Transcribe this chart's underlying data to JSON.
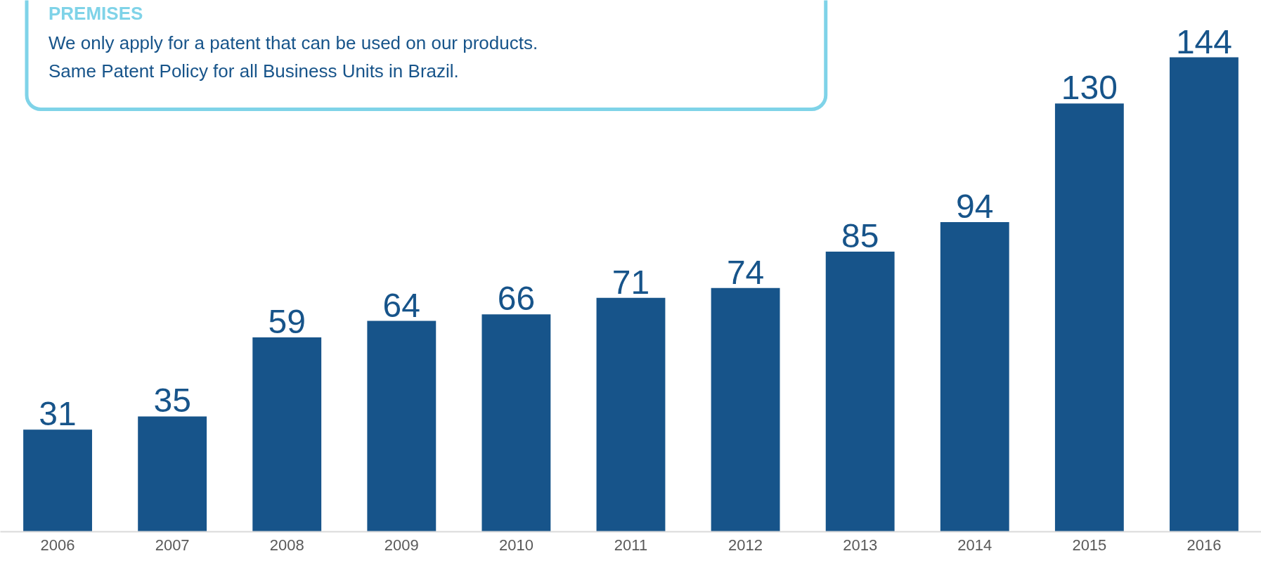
{
  "chart_data": {
    "type": "bar",
    "title": "PREMISES",
    "annotations": [
      "We only apply for a patent that can be used on our products.",
      "Same Patent Policy for all Business Units in Brazil."
    ],
    "categories": [
      "2006",
      "2007",
      "2008",
      "2009",
      "2010",
      "2011",
      "2012",
      "2013",
      "2014",
      "2015",
      "2016"
    ],
    "values": [
      31,
      35,
      59,
      64,
      66,
      71,
      74,
      85,
      94,
      130,
      144
    ],
    "color": "#17548a",
    "data_labels": true,
    "grid": false,
    "tick_labels": "x"
  }
}
